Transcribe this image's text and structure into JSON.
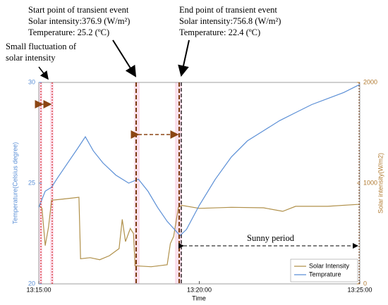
{
  "chart_data": {
    "type": "line",
    "xlabel": "Time",
    "ylabel": "Temperature(Celsius degree)",
    "y2label": "Solar intensity(W/m2)",
    "xlim": [
      0,
      10
    ],
    "xticks": [
      {
        "value": 0,
        "label": "13:15:00"
      },
      {
        "value": 5,
        "label": "13:20:00"
      },
      {
        "value": 10,
        "label": "13:25:00"
      }
    ],
    "ylim": [
      20,
      30
    ],
    "yticks": [
      20,
      25,
      30
    ],
    "y2lim": [
      0,
      2000
    ],
    "y2ticks": [
      0,
      1000,
      2000
    ],
    "legend": "lower right",
    "series": [
      {
        "name": "Solar Intensity",
        "color": "#b0904a",
        "axis": "y2",
        "x": [
          0,
          0.1,
          0.2,
          0.3,
          0.4,
          0.7,
          1.0,
          1.25,
          1.3,
          1.6,
          1.9,
          2.2,
          2.5,
          2.6,
          2.7,
          2.85,
          2.95,
          3.0,
          3.5,
          4.0,
          4.1,
          4.2,
          4.35,
          4.45,
          5,
          6,
          7,
          7.6,
          8,
          9,
          10
        ],
        "values": [
          780,
          750,
          380,
          560,
          830,
          840,
          850,
          860,
          250,
          260,
          240,
          280,
          350,
          640,
          420,
          550,
          500,
          180,
          170,
          190,
          400,
          470,
          760,
          780,
          750,
          760,
          755,
          720,
          770,
          770,
          790
        ]
      },
      {
        "name": "Temprature",
        "color": "#5b8fd6",
        "axis": "y",
        "x": [
          0,
          0.2,
          0.4,
          0.6,
          0.9,
          1.2,
          1.45,
          1.7,
          2.0,
          2.4,
          2.8,
          3.1,
          3.4,
          3.7,
          4.0,
          4.4,
          4.6,
          5.0,
          5.5,
          6.0,
          6.5,
          7.0,
          7.5,
          8.0,
          8.5,
          9.0,
          9.5,
          10
        ],
        "values": [
          23.8,
          24.6,
          24.8,
          25.3,
          26.0,
          26.7,
          27.3,
          26.6,
          26.0,
          25.4,
          25.0,
          25.2,
          24.6,
          23.8,
          23.1,
          22.4,
          22.7,
          23.9,
          25.2,
          26.3,
          27.1,
          27.6,
          28.1,
          28.5,
          28.9,
          29.2,
          29.5,
          29.9
        ]
      }
    ],
    "annotations": [
      "Start point of transient event",
      "Solar intensity:376.9 (W/m²)",
      "Temperature: 25.2 (ºC)",
      "End point of transient event",
      "Solar intensity:756.8 (W/m²)",
      "Temperature: 22.4 (ºC)",
      "Small fluctuation of",
      "solar intensity",
      "Sunny period"
    ]
  }
}
